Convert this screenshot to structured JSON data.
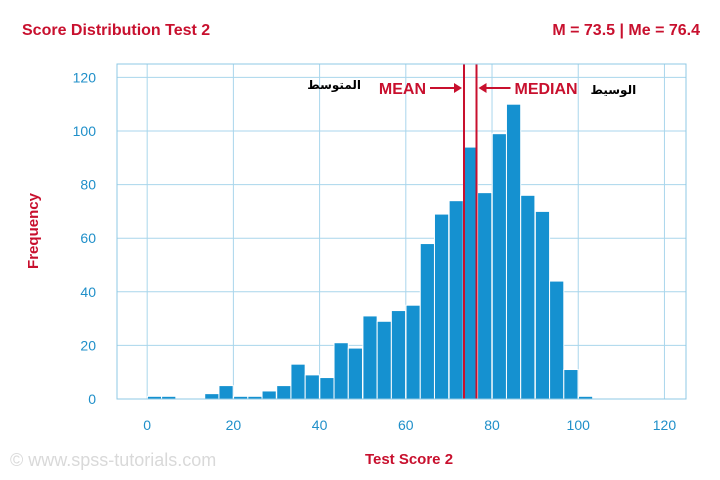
{
  "header": {
    "title": "Score Distribution Test 2",
    "stats": "M = 73.5 | Me = 76.4"
  },
  "watermark": "© www.spss-tutorials.com",
  "colors": {
    "bar": "#1591d0",
    "accent": "#c8102e",
    "grid": "#a9d6ec"
  },
  "chart_data": {
    "type": "bar",
    "xlabel": "Test Score 2",
    "ylabel": "Frequency",
    "xlim": [
      -7,
      125
    ],
    "ylim": [
      0,
      125
    ],
    "xticks": [
      0,
      20,
      40,
      60,
      80,
      100,
      120
    ],
    "yticks": [
      0,
      20,
      40,
      60,
      80,
      100,
      120
    ],
    "bin_width": 3.3,
    "bins": [
      {
        "x": 1.7,
        "count": 1
      },
      {
        "x": 5.0,
        "count": 1
      },
      {
        "x": 15.0,
        "count": 2
      },
      {
        "x": 18.3,
        "count": 5
      },
      {
        "x": 21.7,
        "count": 1
      },
      {
        "x": 25.0,
        "count": 1
      },
      {
        "x": 28.3,
        "count": 3
      },
      {
        "x": 31.7,
        "count": 5
      },
      {
        "x": 35.0,
        "count": 13
      },
      {
        "x": 38.3,
        "count": 9
      },
      {
        "x": 41.7,
        "count": 8
      },
      {
        "x": 45.0,
        "count": 21
      },
      {
        "x": 48.3,
        "count": 19
      },
      {
        "x": 51.7,
        "count": 31
      },
      {
        "x": 55.0,
        "count": 29
      },
      {
        "x": 58.3,
        "count": 33
      },
      {
        "x": 61.7,
        "count": 35
      },
      {
        "x": 65.0,
        "count": 58
      },
      {
        "x": 68.3,
        "count": 69
      },
      {
        "x": 71.7,
        "count": 74
      },
      {
        "x": 75.0,
        "count": 94
      },
      {
        "x": 78.3,
        "count": 77
      },
      {
        "x": 81.7,
        "count": 99
      },
      {
        "x": 85.0,
        "count": 110
      },
      {
        "x": 88.3,
        "count": 76
      },
      {
        "x": 91.7,
        "count": 70
      },
      {
        "x": 95.0,
        "count": 44
      },
      {
        "x": 98.3,
        "count": 11
      },
      {
        "x": 101.7,
        "count": 1
      }
    ],
    "reference_lines": [
      {
        "label": "MEAN",
        "value": 73.5,
        "translation": "المتوسط"
      },
      {
        "label": "MEDIAN",
        "value": 76.4,
        "translation": "الوسيط"
      }
    ],
    "grid": true
  }
}
